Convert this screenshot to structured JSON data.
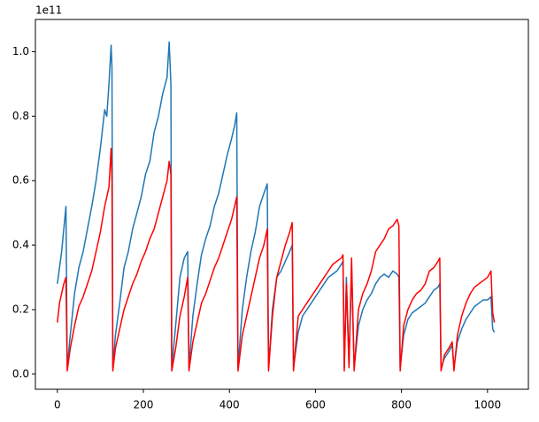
{
  "chart_data": {
    "type": "line",
    "offset_label": "1e11",
    "x": [
      0,
      5,
      10,
      15,
      20,
      23,
      30,
      40,
      50,
      60,
      70,
      80,
      90,
      100,
      110,
      115,
      120,
      125,
      127,
      129,
      135,
      145,
      155,
      165,
      175,
      185,
      195,
      205,
      215,
      225,
      235,
      245,
      255,
      260,
      264,
      266,
      275,
      285,
      295,
      303,
      306,
      315,
      325,
      335,
      345,
      355,
      365,
      375,
      385,
      395,
      405,
      412,
      417,
      420,
      430,
      440,
      450,
      460,
      470,
      480,
      488,
      491,
      500,
      510,
      520,
      530,
      540,
      546,
      549,
      560,
      570,
      580,
      590,
      600,
      610,
      620,
      630,
      640,
      650,
      660,
      664,
      667,
      672,
      678,
      684,
      690,
      700,
      710,
      720,
      730,
      740,
      750,
      760,
      770,
      780,
      790,
      794,
      797,
      805,
      815,
      825,
      835,
      845,
      855,
      865,
      875,
      885,
      889,
      892,
      900,
      910,
      918,
      922,
      930,
      940,
      950,
      960,
      970,
      980,
      990,
      1000,
      1008,
      1012,
      1016
    ],
    "series": [
      {
        "color": "#1f77b4",
        "values": [
          0.28,
          0.33,
          0.38,
          0.45,
          0.52,
          0.02,
          0.12,
          0.25,
          0.33,
          0.38,
          0.45,
          0.52,
          0.6,
          0.7,
          0.82,
          0.8,
          0.9,
          1.02,
          0.95,
          0.02,
          0.12,
          0.22,
          0.33,
          0.38,
          0.45,
          0.5,
          0.55,
          0.62,
          0.66,
          0.75,
          0.8,
          0.87,
          0.92,
          1.03,
          0.9,
          0.02,
          0.15,
          0.3,
          0.36,
          0.38,
          0.02,
          0.18,
          0.28,
          0.37,
          0.42,
          0.46,
          0.52,
          0.56,
          0.62,
          0.68,
          0.73,
          0.77,
          0.81,
          0.02,
          0.2,
          0.3,
          0.38,
          0.44,
          0.52,
          0.56,
          0.59,
          0.02,
          0.2,
          0.3,
          0.32,
          0.35,
          0.38,
          0.4,
          0.02,
          0.13,
          0.18,
          0.2,
          0.22,
          0.24,
          0.26,
          0.28,
          0.3,
          0.31,
          0.32,
          0.34,
          0.35,
          0.02,
          0.3,
          0.03,
          0.33,
          0.02,
          0.15,
          0.2,
          0.23,
          0.25,
          0.28,
          0.3,
          0.31,
          0.3,
          0.32,
          0.31,
          0.3,
          0.02,
          0.12,
          0.17,
          0.19,
          0.2,
          0.21,
          0.22,
          0.24,
          0.26,
          0.27,
          0.28,
          0.02,
          0.05,
          0.07,
          0.09,
          0.02,
          0.1,
          0.14,
          0.17,
          0.19,
          0.21,
          0.22,
          0.23,
          0.23,
          0.24,
          0.14,
          0.13
        ]
      },
      {
        "color": "#ff0000",
        "values": [
          0.16,
          0.22,
          0.25,
          0.28,
          0.3,
          0.01,
          0.08,
          0.15,
          0.21,
          0.24,
          0.28,
          0.32,
          0.38,
          0.44,
          0.52,
          0.55,
          0.58,
          0.7,
          0.6,
          0.01,
          0.08,
          0.14,
          0.2,
          0.24,
          0.28,
          0.31,
          0.35,
          0.38,
          0.42,
          0.45,
          0.5,
          0.55,
          0.6,
          0.66,
          0.62,
          0.01,
          0.08,
          0.18,
          0.24,
          0.3,
          0.01,
          0.1,
          0.16,
          0.22,
          0.25,
          0.29,
          0.33,
          0.36,
          0.4,
          0.44,
          0.48,
          0.52,
          0.55,
          0.01,
          0.12,
          0.18,
          0.24,
          0.3,
          0.36,
          0.4,
          0.45,
          0.01,
          0.18,
          0.3,
          0.35,
          0.4,
          0.44,
          0.47,
          0.01,
          0.18,
          0.2,
          0.22,
          0.24,
          0.26,
          0.28,
          0.3,
          0.32,
          0.34,
          0.35,
          0.36,
          0.37,
          0.01,
          0.28,
          0.02,
          0.36,
          0.01,
          0.2,
          0.25,
          0.28,
          0.32,
          0.38,
          0.4,
          0.42,
          0.45,
          0.46,
          0.48,
          0.46,
          0.01,
          0.15,
          0.2,
          0.23,
          0.25,
          0.26,
          0.28,
          0.32,
          0.33,
          0.35,
          0.36,
          0.01,
          0.06,
          0.08,
          0.1,
          0.01,
          0.12,
          0.18,
          0.22,
          0.25,
          0.27,
          0.28,
          0.29,
          0.3,
          0.32,
          0.19,
          0.16
        ]
      }
    ],
    "xlim": [
      -51,
      1095
    ],
    "ylim": [
      -0.047,
      1.1
    ],
    "xticks": [
      0,
      200,
      400,
      600,
      800,
      1000
    ],
    "yticks": [
      {
        "value": 0,
        "label": "0.0"
      },
      0.2,
      0.4,
      0.6,
      0.8,
      {
        "value": 1,
        "label": "1.0"
      }
    ]
  }
}
